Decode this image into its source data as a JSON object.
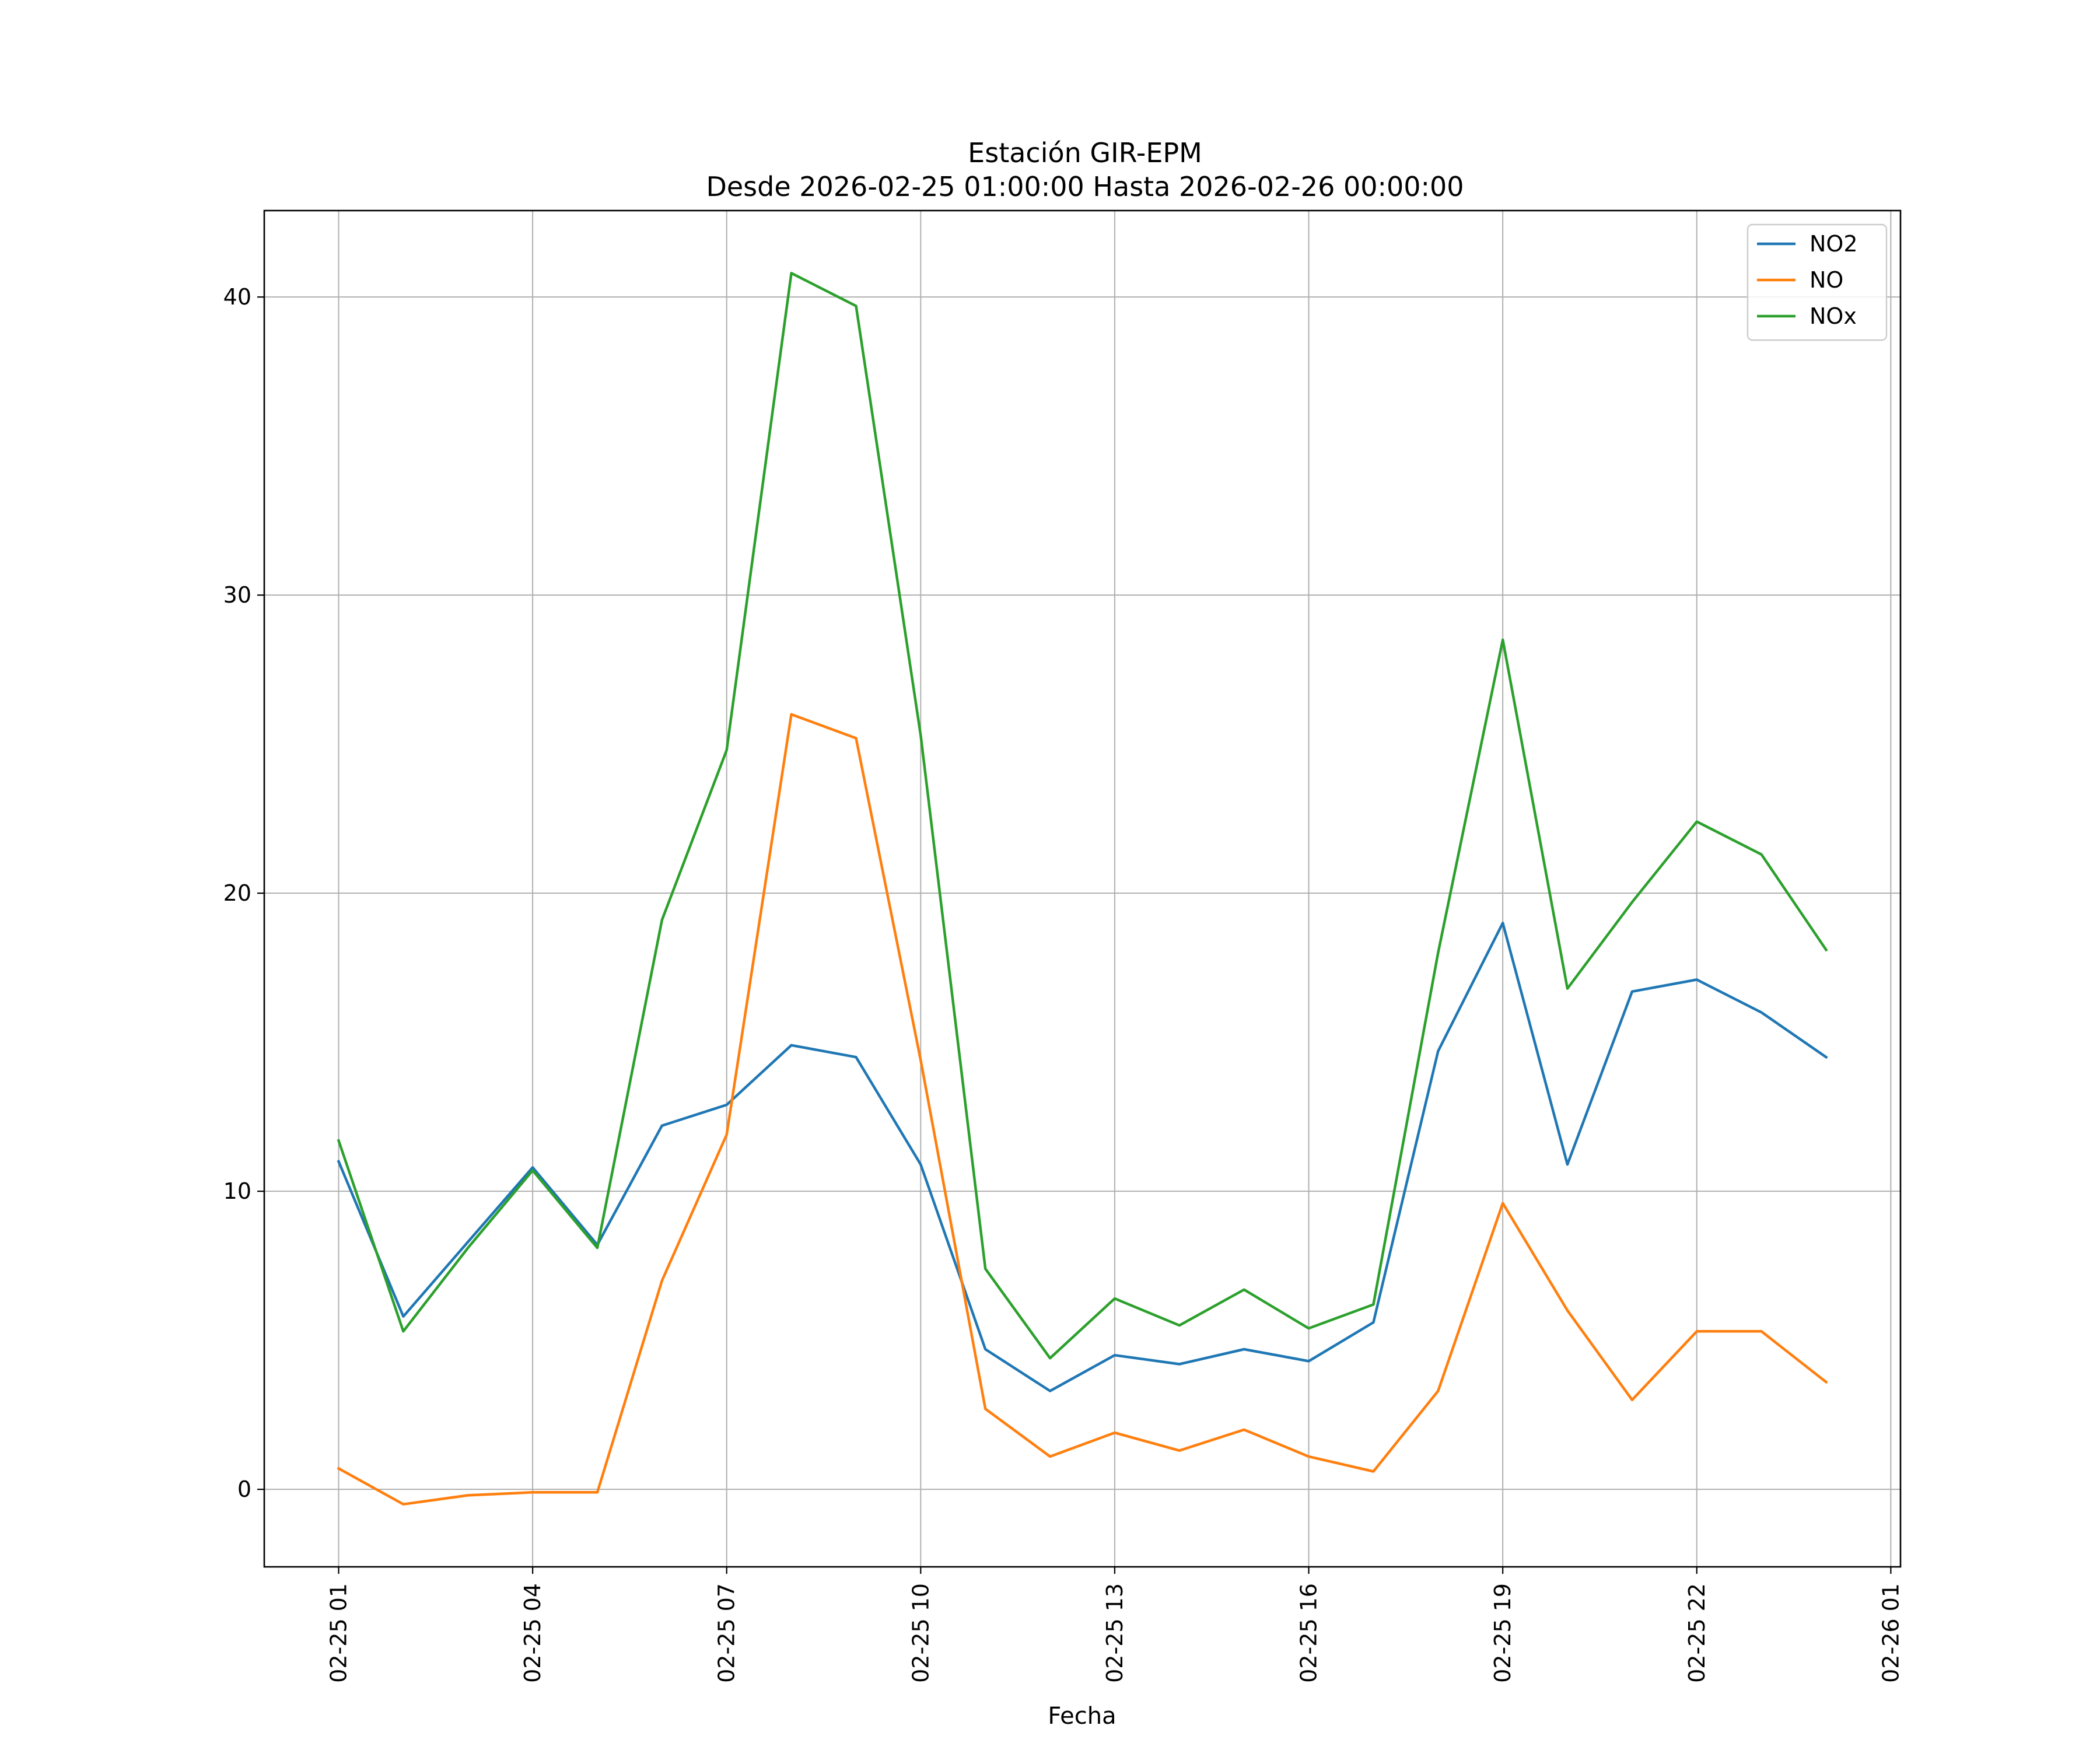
{
  "chart_data": {
    "type": "line",
    "title": "Estación GIR-EPM",
    "subtitle": "Desde 2026-02-25 01:00:00 Hasta 2026-02-26 00:00:00",
    "xlabel": "Fecha",
    "ylabel": "",
    "x": [
      "2026-02-25 01:00",
      "2026-02-25 02:00",
      "2026-02-25 03:00",
      "2026-02-25 04:00",
      "2026-02-25 05:00",
      "2026-02-25 06:00",
      "2026-02-25 07:00",
      "2026-02-25 08:00",
      "2026-02-25 09:00",
      "2026-02-25 10:00",
      "2026-02-25 11:00",
      "2026-02-25 12:00",
      "2026-02-25 13:00",
      "2026-02-25 14:00",
      "2026-02-25 15:00",
      "2026-02-25 16:00",
      "2026-02-25 17:00",
      "2026-02-25 18:00",
      "2026-02-25 19:00",
      "2026-02-25 20:00",
      "2026-02-25 21:00",
      "2026-02-25 22:00",
      "2026-02-25 23:00",
      "2026-02-26 00:00"
    ],
    "xlim": [
      "2026-02-24 23:51",
      "2026-02-26 01:09"
    ],
    "xticks": [
      {
        "value": "2026-02-25 01:00",
        "label": "02-25 01"
      },
      {
        "value": "2026-02-25 04:00",
        "label": "02-25 04"
      },
      {
        "value": "2026-02-25 07:00",
        "label": "02-25 07"
      },
      {
        "value": "2026-02-25 10:00",
        "label": "02-25 10"
      },
      {
        "value": "2026-02-25 13:00",
        "label": "02-25 13"
      },
      {
        "value": "2026-02-25 16:00",
        "label": "02-25 16"
      },
      {
        "value": "2026-02-25 19:00",
        "label": "02-25 19"
      },
      {
        "value": "2026-02-25 22:00",
        "label": "02-25 22"
      },
      {
        "value": "2026-02-26 01:00",
        "label": "02-26 01"
      }
    ],
    "ylim": [
      -2.6,
      42.9
    ],
    "yticks": [
      0,
      10,
      20,
      30,
      40
    ],
    "grid": true,
    "legend": "top-right",
    "series": [
      {
        "name": "NO2",
        "color": "#1f77b4",
        "values": [
          11.0,
          5.8,
          8.3,
          10.8,
          8.2,
          12.2,
          12.9,
          14.9,
          14.5,
          10.9,
          4.7,
          3.3,
          4.5,
          4.2,
          4.7,
          4.3,
          5.6,
          14.7,
          19.0,
          10.9,
          16.7,
          17.1,
          16.0,
          14.5
        ]
      },
      {
        "name": "NO",
        "color": "#ff7f0e",
        "values": [
          0.7,
          -0.5,
          -0.2,
          -0.1,
          -0.1,
          7.0,
          11.9,
          26.0,
          25.2,
          14.4,
          2.7,
          1.1,
          1.9,
          1.3,
          2.0,
          1.1,
          0.6,
          3.3,
          9.6,
          6.0,
          3.0,
          5.3,
          5.3,
          3.6
        ]
      },
      {
        "name": "NOx",
        "color": "#2ca02c",
        "values": [
          11.7,
          5.3,
          8.1,
          10.7,
          8.1,
          19.1,
          24.8,
          40.8,
          39.7,
          25.3,
          7.4,
          4.4,
          6.4,
          5.5,
          6.7,
          5.4,
          6.2,
          18.0,
          28.5,
          16.8,
          19.7,
          22.4,
          21.3,
          18.1
        ]
      }
    ]
  }
}
